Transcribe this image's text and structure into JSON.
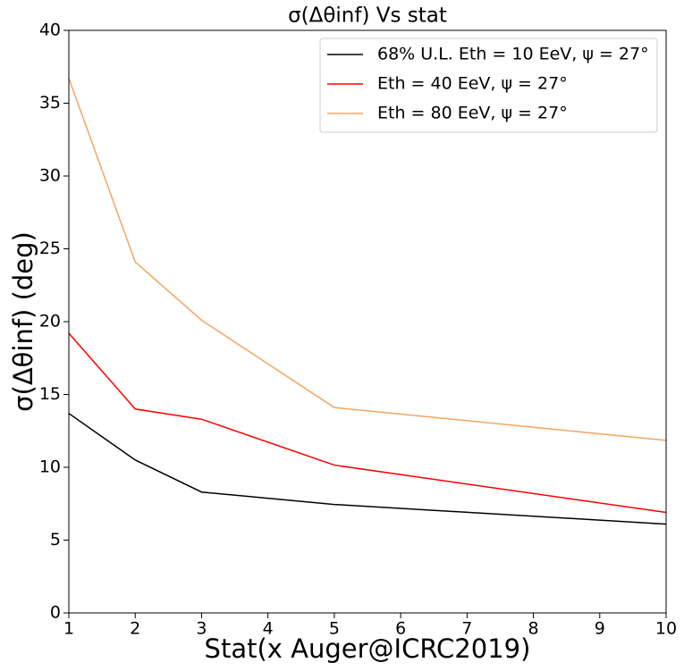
{
  "chart_data": {
    "type": "line",
    "title": "σ(Δθinf) Vs stat",
    "x_label": "Stat(x Auger@ICRC2019)",
    "y_label": "σ(Δθinf) (deg)",
    "x": [
      1,
      2,
      3,
      5,
      10
    ],
    "series": [
      {
        "name": "68% U.L. Eth = 10 EeV, ψ = 27°",
        "color": "#000000",
        "values": [
          13.7,
          10.5,
          8.3,
          7.45,
          6.1
        ]
      },
      {
        "name": "Eth = 40 EeV, ψ = 27°",
        "color": "#ff0000",
        "values": [
          19.2,
          14.0,
          13.3,
          10.15,
          6.9
        ]
      },
      {
        "name": "Eth = 80 EeV, ψ = 27°",
        "color": "#f4a460",
        "values": [
          36.7,
          24.1,
          20.1,
          14.1,
          11.85
        ]
      }
    ],
    "xlim": [
      1,
      10
    ],
    "xticks": [
      1,
      2,
      3,
      4,
      5,
      6,
      7,
      8,
      9,
      10
    ],
    "ylim": [
      0,
      40
    ],
    "yticks": [
      0,
      5,
      10,
      15,
      20,
      25,
      30,
      35,
      40
    ],
    "grid": false,
    "legend": "upper right"
  }
}
